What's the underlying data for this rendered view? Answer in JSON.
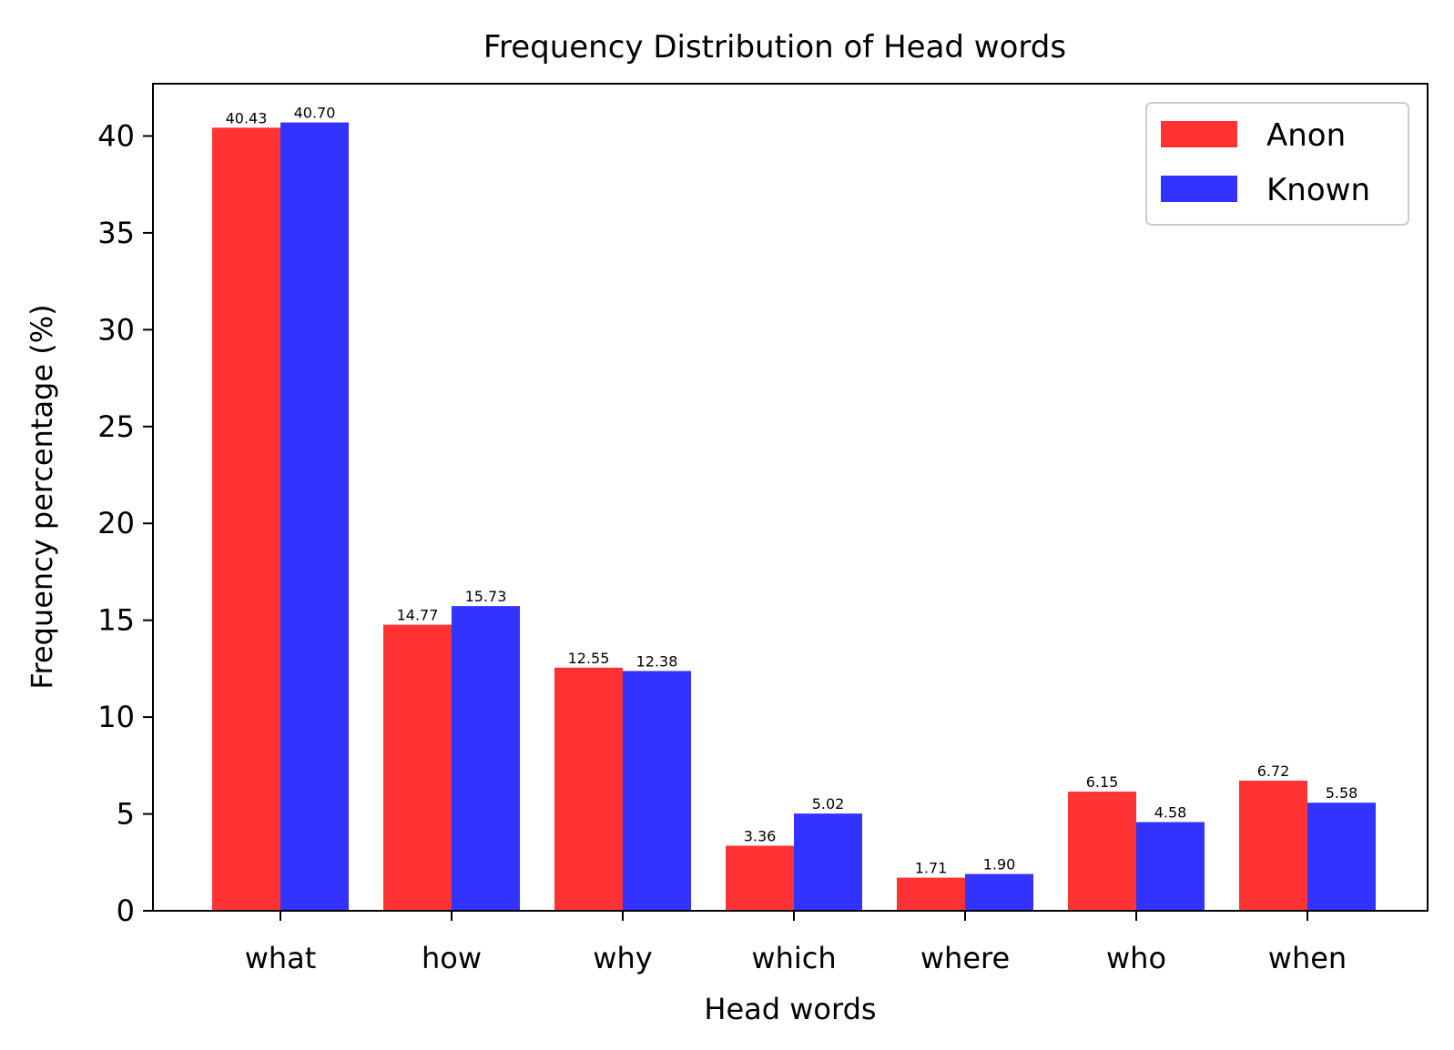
{
  "chart_data": {
    "type": "bar",
    "title": "Frequency Distribution of Head words",
    "xlabel": "Head words",
    "ylabel": "Frequency percentage (%)",
    "categories": [
      "what",
      "how",
      "why",
      "which",
      "where",
      "who",
      "when"
    ],
    "series": [
      {
        "name": "Anon",
        "color": "#ff3333",
        "values": [
          40.43,
          14.77,
          12.55,
          3.36,
          1.71,
          6.15,
          6.72
        ],
        "labels": [
          "40.43",
          "14.77",
          "12.55",
          "3.36",
          "1.71",
          "6.15",
          "6.72"
        ]
      },
      {
        "name": "Known",
        "color": "#3333ff",
        "values": [
          40.7,
          15.73,
          12.38,
          5.02,
          1.9,
          4.58,
          5.58
        ],
        "labels": [
          "40.70",
          "15.73",
          "12.38",
          "5.02",
          "1.90",
          "4.58",
          "5.58"
        ]
      }
    ],
    "ylim": [
      0,
      42.7
    ],
    "yticks": [
      0,
      5,
      10,
      15,
      20,
      25,
      30,
      35,
      40
    ],
    "ytick_labels": [
      "0",
      "5",
      "10",
      "15",
      "20",
      "25",
      "30",
      "35",
      "40"
    ],
    "legend_position": "top-right",
    "grid": false
  }
}
